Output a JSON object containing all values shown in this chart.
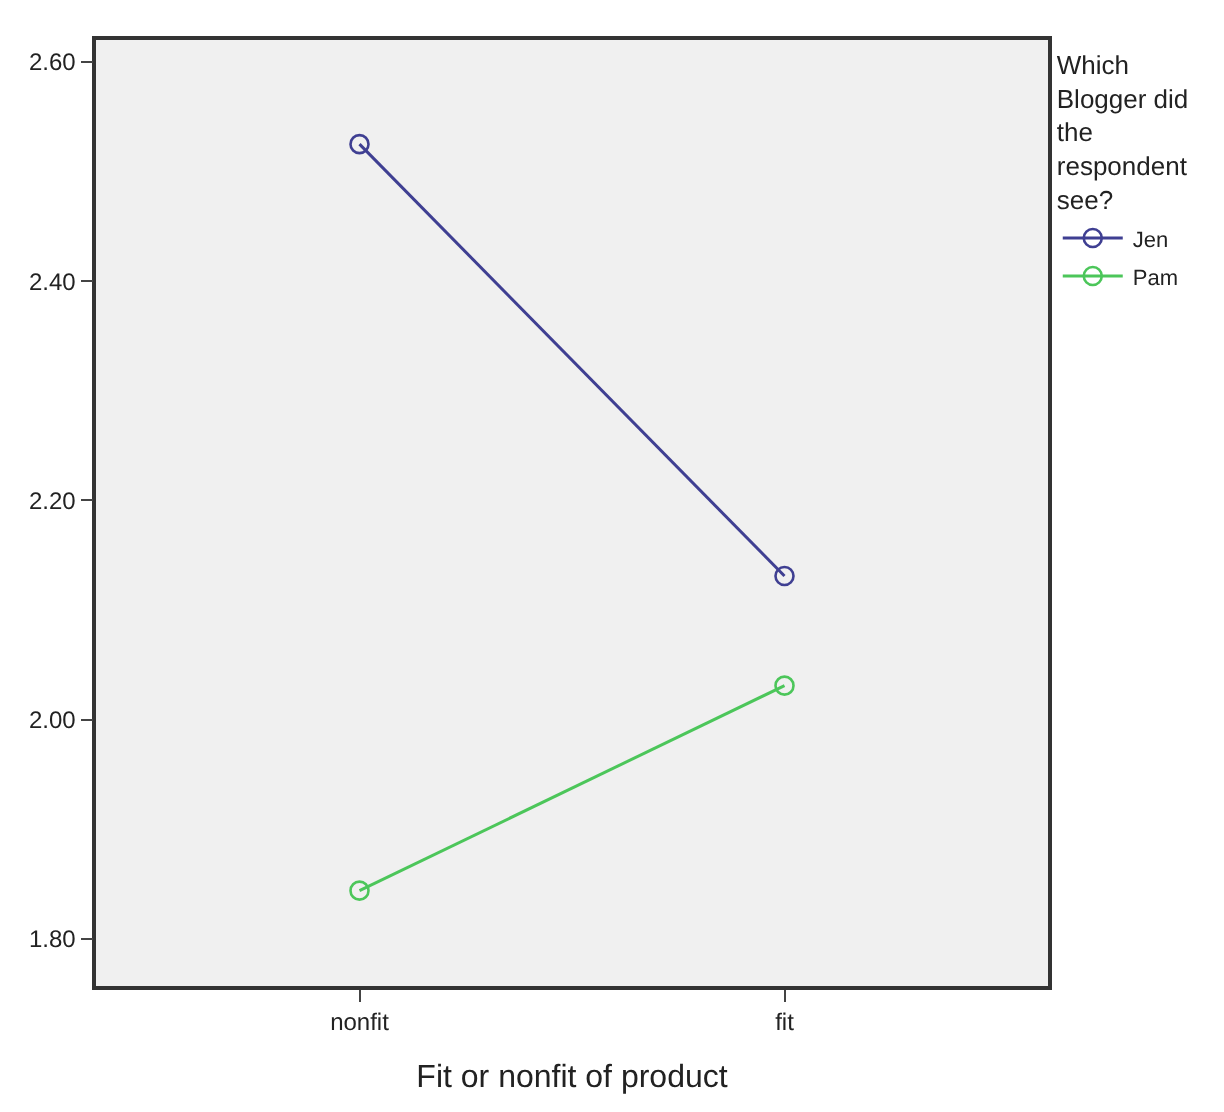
{
  "chart_data": {
    "type": "line",
    "xlabel": "Fit or nonfit of product",
    "legend_title": "Which Blogger did the respondent see?",
    "categories": [
      "nonfit",
      "fit"
    ],
    "series": [
      {
        "name": "Jen",
        "color": "#3f3f92",
        "values": [
          2.525,
          2.131
        ]
      },
      {
        "name": "Pam",
        "color": "#4cc65a",
        "values": [
          1.844,
          2.031
        ]
      }
    ],
    "ylim": [
      1.757,
      2.62
    ],
    "yticks": [
      {
        "value": 1.8,
        "label": "1.80"
      },
      {
        "value": 2.0,
        "label": "2.00"
      },
      {
        "value": 2.2,
        "label": "2.20"
      },
      {
        "value": 2.4,
        "label": "2.40"
      },
      {
        "value": 2.6,
        "label": "2.60"
      }
    ],
    "grid": false,
    "legend": "top right",
    "marker": "circle",
    "line_style": "solid"
  }
}
